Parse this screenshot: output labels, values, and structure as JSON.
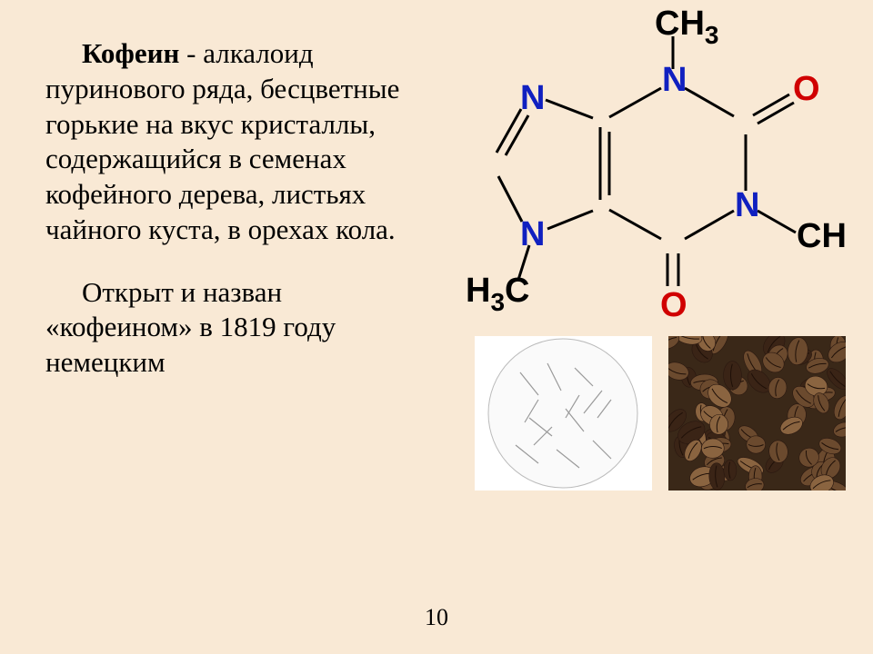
{
  "slide": {
    "term": "Кофеин",
    "para1_rest": " - алкалоид пуринового ряда, бесцветные горькие на вкус кристаллы, содержащийся в семенах кофейного дерева, листьях чайного куста, в орехах кола.",
    "para2_first": "Открыт и назван",
    "para2_rest": "«кофеином» в 1819 году немецким",
    "page_number": "10"
  },
  "chem": {
    "labels": {
      "ch3_top": "CH",
      "sub3": "3",
      "n": "N",
      "o": "O",
      "h3c": "H",
      "c_right": "C"
    },
    "colors": {
      "carbon": "#000000",
      "nitrogen": "#1020c0",
      "oxygen": "#d00000",
      "bond": "#000000"
    },
    "fontsize": 38
  },
  "photos": {
    "crystals_name": "caffeine-crystals",
    "beans_name": "coffee-beans",
    "bean_base": "#6b4a2e",
    "bean_dark": "#3a2416",
    "bean_light": "#8a6440"
  }
}
